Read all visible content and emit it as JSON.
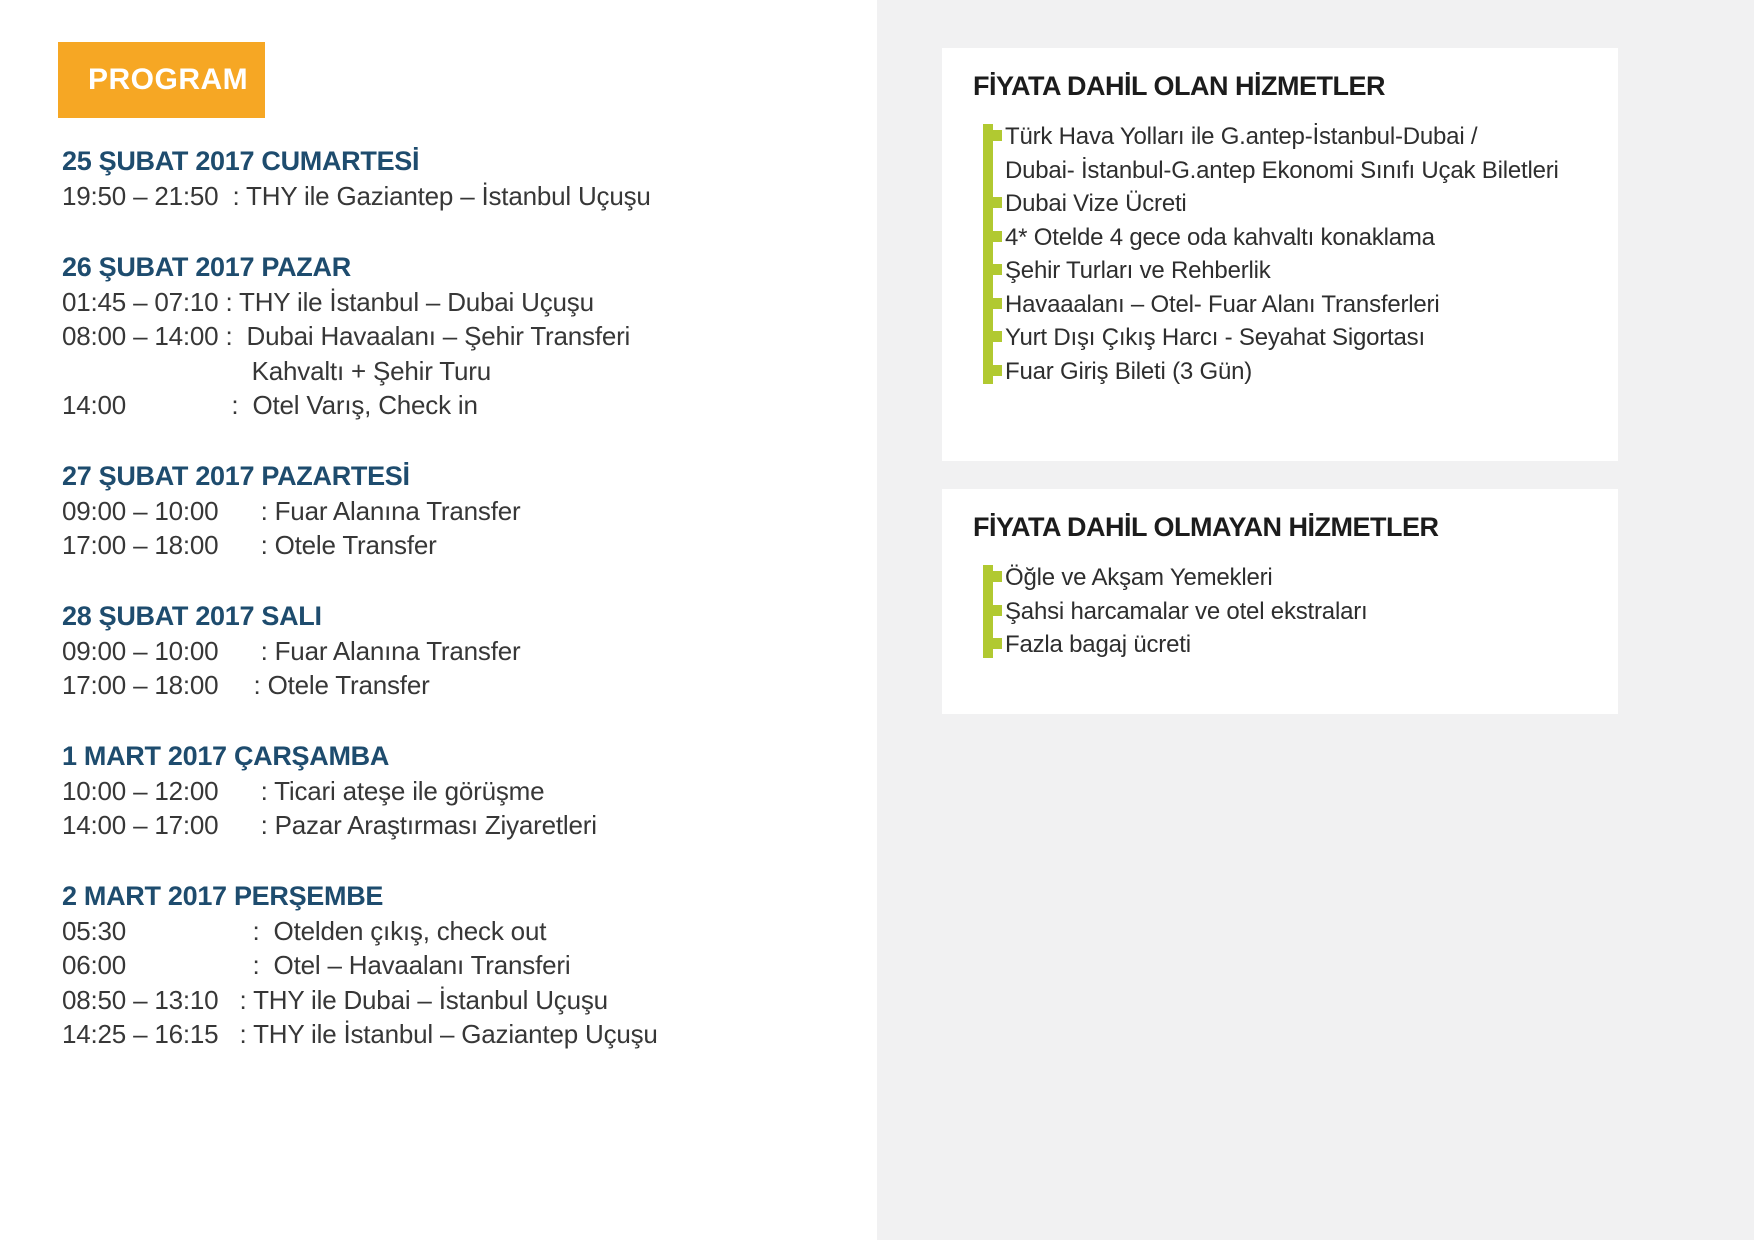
{
  "page": {
    "panel_bg": "#f1f1f2",
    "body_text_color": "#373737",
    "card_title_color": "#1c1c1c",
    "item_text_color": "#2e2e2e"
  },
  "program": {
    "badge_label": "PROGRAM",
    "badge_bg": "#f6a724",
    "heading_color": "#1e4c6e",
    "sections": [
      {
        "heading": "25 ŞUBAT 2017 CUMARTESİ",
        "lines": [
          "19:50 – 21:50  : THY ile Gaziantep – İstanbul Uçuşu"
        ]
      },
      {
        "heading": "26 ŞUBAT 2017 PAZAR",
        "lines": [
          "01:45 – 07:10 : THY ile İstanbul – Dubai Uçuşu",
          "08:00 – 14:00 :  Dubai Havaalanı – Şehir Transferi",
          "                           Kahvaltı + Şehir Turu",
          "14:00               :  Otel Varış, Check in"
        ]
      },
      {
        "heading": "27 ŞUBAT 2017 PAZARTESİ",
        "lines": [
          "09:00 – 10:00      : Fuar Alanına Transfer",
          "17:00 – 18:00      : Otele Transfer"
        ]
      },
      {
        "heading": "28 ŞUBAT 2017 SALI",
        "lines": [
          "09:00 – 10:00      : Fuar Alanına Transfer",
          "17:00 – 18:00     : Otele Transfer"
        ]
      },
      {
        "heading": "1 MART 2017 ÇARŞAMBA",
        "lines": [
          "10:00 – 12:00      : Ticari ateşe ile görüşme",
          "14:00 – 17:00      : Pazar Araştırması Ziyaretleri"
        ]
      },
      {
        "heading": "2 MART 2017 PERŞEMBE",
        "lines": [
          "05:30                  :  Otelden çıkış, check out",
          "06:00                  :  Otel – Havaalanı Transferi",
          "08:50 – 13:10   : THY ile Dubai – İstanbul Uçuşu",
          "14:25 – 16:15   : THY ile İstanbul – Gaziantep Uçuşu"
        ]
      }
    ]
  },
  "included": {
    "title": "FİYATA DAHİL OLAN HİZMETLER",
    "accent": "#b1c931",
    "items": [
      {
        "text": "Türk Hava Yolları ile G.antep-İstanbul-Dubai /",
        "bullet": true
      },
      {
        "text": "Dubai- İstanbul-G.antep Ekonomi Sınıfı Uçak Biletleri",
        "bullet": false
      },
      {
        "text": "Dubai Vize Ücreti",
        "bullet": true
      },
      {
        "text": "4* Otelde 4 gece oda kahvaltı konaklama",
        "bullet": true
      },
      {
        "text": "Şehir Turları ve Rehberlik",
        "bullet": true
      },
      {
        "text": "Havaaalanı – Otel- Fuar Alanı Transferleri",
        "bullet": true
      },
      {
        "text": "Yurt Dışı Çıkış Harcı - Seyahat Sigortası",
        "bullet": true
      },
      {
        "text": "Fuar Giriş Bileti (3 Gün)",
        "bullet": true
      }
    ]
  },
  "excluded": {
    "title": "FİYATA DAHİL OLMAYAN HİZMETLER",
    "items": [
      {
        "text": "Öğle ve Akşam Yemekleri",
        "bullet": true
      },
      {
        "text": "Şahsi harcamalar ve otel ekstraları",
        "bullet": true
      },
      {
        "text": "Fazla bagaj ücreti",
        "bullet": true
      }
    ]
  }
}
